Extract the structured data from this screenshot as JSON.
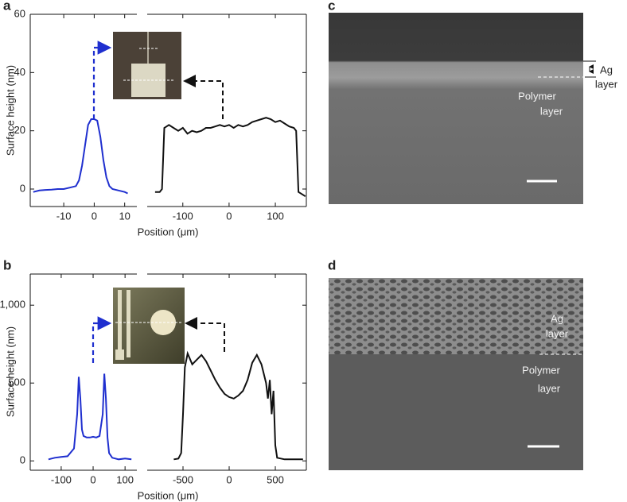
{
  "panel_labels": [
    "a",
    "b",
    "c",
    "d"
  ],
  "chart_data": [
    {
      "type": "line",
      "ylabel": "Surface height (nm)",
      "xlabel": "Position (μm)",
      "color": "#1f2fcf",
      "xlim": [
        -21,
        14
      ],
      "xticks": [
        -10,
        0,
        10
      ],
      "ylim": [
        -6,
        60
      ],
      "yticks": [
        0,
        20,
        40,
        60
      ],
      "x": [
        -20,
        -18,
        -16,
        -14,
        -12,
        -10,
        -8,
        -6,
        -5,
        -4,
        -3,
        -2,
        -1,
        0,
        1,
        2,
        3,
        4,
        5,
        6,
        8,
        10,
        11
      ],
      "values": [
        -1,
        -0.5,
        -0.3,
        -0.2,
        0,
        0,
        0.5,
        1,
        3,
        8,
        15,
        22,
        24,
        24,
        23.5,
        18,
        10,
        4,
        1,
        0,
        -0.5,
        -1,
        -1.5
      ]
    },
    {
      "type": "line",
      "color": "#111111",
      "xlim": [
        -177,
        167
      ],
      "xticks": [
        -100,
        0,
        100
      ],
      "ylim": [
        -6,
        60
      ],
      "yticks": [
        0,
        20,
        40,
        60
      ],
      "x": [
        -160,
        -150,
        -145,
        -140,
        -130,
        -120,
        -110,
        -100,
        -90,
        -80,
        -70,
        -60,
        -50,
        -40,
        -30,
        -20,
        -10,
        0,
        10,
        20,
        30,
        40,
        50,
        60,
        70,
        80,
        90,
        100,
        110,
        120,
        130,
        140,
        145,
        150,
        160,
        165
      ],
      "values": [
        -1,
        -1,
        0,
        21,
        22,
        21,
        20,
        21,
        19,
        20,
        19.5,
        20,
        21,
        21,
        21.5,
        22,
        21.5,
        22,
        21,
        22,
        21.5,
        22,
        23,
        23.5,
        24,
        24.5,
        24,
        23,
        23.5,
        22.5,
        21.5,
        21,
        20,
        -1,
        -2,
        -2.5
      ]
    },
    {
      "type": "line",
      "ylabel": "Surface height (nm)",
      "xlabel": "Position (μm)",
      "color": "#1f2fcf",
      "xlim": [
        -197,
        137
      ],
      "xticks": [
        -100,
        0,
        100
      ],
      "ylim": [
        -60,
        1200
      ],
      "yticks": [
        0,
        500,
        {
          "value": 1000,
          "label": "1,000"
        }
      ],
      "x": [
        -140,
        -120,
        -100,
        -80,
        -60,
        -50,
        -45,
        -40,
        -35,
        -30,
        -20,
        -10,
        0,
        10,
        20,
        30,
        35,
        40,
        45,
        50,
        60,
        80,
        100,
        120
      ],
      "values": [
        10,
        20,
        25,
        30,
        80,
        300,
        540,
        400,
        200,
        160,
        150,
        150,
        155,
        150,
        160,
        300,
        560,
        400,
        150,
        50,
        20,
        10,
        15,
        10
      ]
    },
    {
      "type": "line",
      "color": "#111111",
      "xlim": [
        -888,
        836
      ],
      "xticks": [
        -500,
        0,
        500
      ],
      "ylim": [
        -60,
        1200
      ],
      "yticks": [
        0,
        500,
        1000
      ],
      "x": [
        -600,
        -550,
        -520,
        -500,
        -480,
        -450,
        -400,
        -350,
        -300,
        -250,
        -200,
        -150,
        -100,
        -50,
        0,
        50,
        100,
        150,
        200,
        250,
        300,
        350,
        400,
        420,
        440,
        460,
        480,
        500,
        520,
        600,
        800
      ],
      "values": [
        10,
        15,
        50,
        300,
        600,
        690,
        620,
        650,
        680,
        640,
        580,
        520,
        470,
        430,
        410,
        400,
        420,
        450,
        520,
        630,
        680,
        620,
        500,
        400,
        520,
        300,
        450,
        100,
        20,
        10,
        10
      ]
    }
  ],
  "images": [
    {
      "annotations": [
        {
          "lines": [
            "Ag",
            "layer"
          ]
        },
        {
          "lines": [
            "Polymer",
            "layer"
          ]
        }
      ]
    },
    {
      "annotations": [
        {
          "lines": [
            "Ag",
            "layer"
          ]
        },
        {
          "lines": [
            "Polymer",
            "layer"
          ]
        }
      ]
    }
  ]
}
